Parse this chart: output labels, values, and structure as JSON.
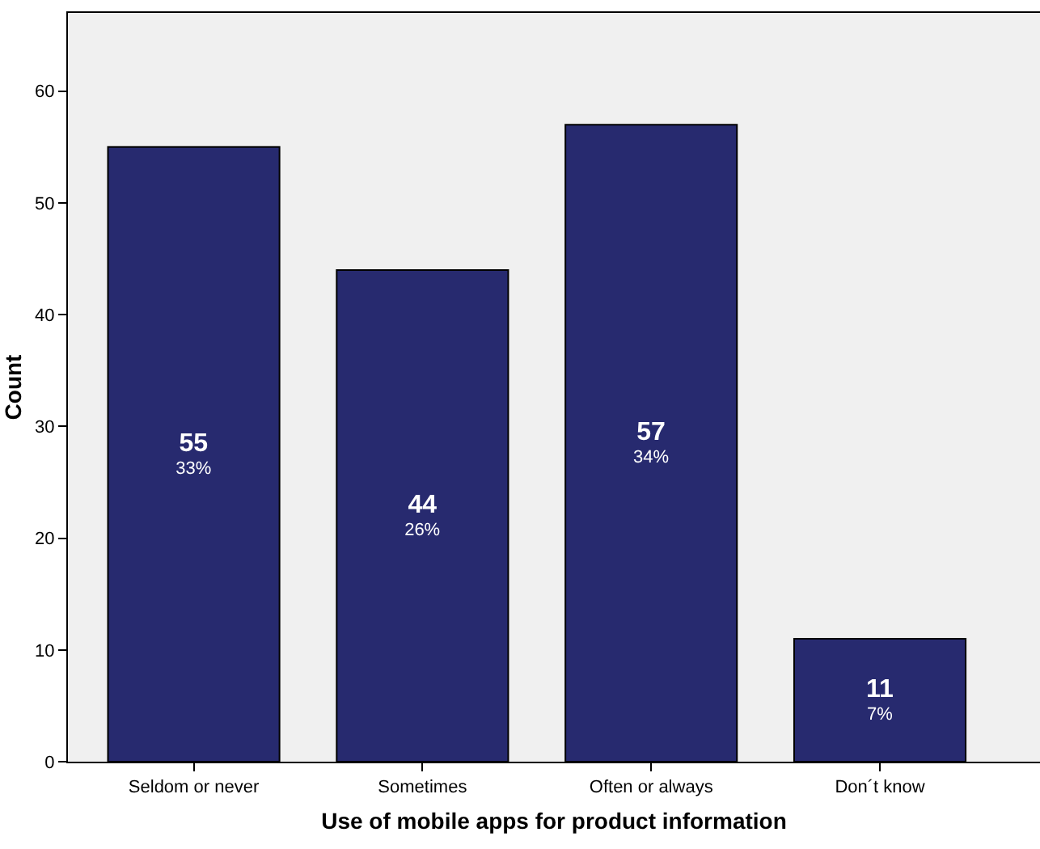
{
  "chart_data": {
    "type": "bar",
    "xlabel": "Use of mobile apps for product information",
    "ylabel": "Count",
    "categories": [
      "Seldom or never",
      "Sometimes",
      "Often or always",
      "Don´t know"
    ],
    "values": [
      55,
      44,
      57,
      11
    ],
    "value_labels": [
      "55\n33%",
      "44\n26%",
      "57\n34%",
      "11\n7%"
    ],
    "color": "#272a6f",
    "ylim": [
      0,
      67
    ],
    "yticks": [
      0,
      10,
      20,
      30,
      40,
      50,
      60
    ]
  }
}
